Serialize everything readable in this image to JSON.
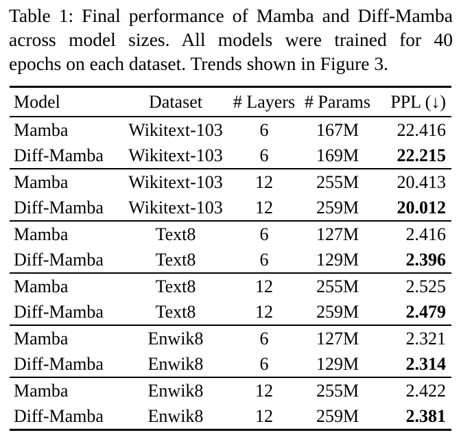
{
  "caption": {
    "full": "Table 1: Final performance of Mamba and Diff-Mamba across model sizes. All models were trained for 40 epochs on each dataset. Trends shown in Figure 3.",
    "lines": [
      "Table 1: Final performance of Mamba and Diff-Mamba",
      "across model sizes.  All models were trained for 40",
      "epochs on each dataset. Trends shown in Figure 3."
    ]
  },
  "table": {
    "headers": [
      "Model",
      "Dataset",
      "# Layers",
      "# Params",
      "PPL (↓)"
    ],
    "groups": [
      {
        "rows": [
          {
            "model": "Mamba",
            "dataset": "Wikitext-103",
            "layers": "6",
            "params": "167M",
            "ppl": "22.416",
            "ppl_bold": false
          },
          {
            "model": "Diff-Mamba",
            "dataset": "Wikitext-103",
            "layers": "6",
            "params": "169M",
            "ppl": "22.215",
            "ppl_bold": true
          }
        ]
      },
      {
        "rows": [
          {
            "model": "Mamba",
            "dataset": "Wikitext-103",
            "layers": "12",
            "params": "255M",
            "ppl": "20.413",
            "ppl_bold": false
          },
          {
            "model": "Diff-Mamba",
            "dataset": "Wikitext-103",
            "layers": "12",
            "params": "259M",
            "ppl": "20.012",
            "ppl_bold": true
          }
        ]
      },
      {
        "rows": [
          {
            "model": "Mamba",
            "dataset": "Text8",
            "layers": "6",
            "params": "127M",
            "ppl": "2.416",
            "ppl_bold": false
          },
          {
            "model": "Diff-Mamba",
            "dataset": "Text8",
            "layers": "6",
            "params": "129M",
            "ppl": "2.396",
            "ppl_bold": true
          }
        ]
      },
      {
        "rows": [
          {
            "model": "Mamba",
            "dataset": "Text8",
            "layers": "12",
            "params": "255M",
            "ppl": "2.525",
            "ppl_bold": false
          },
          {
            "model": "Diff-Mamba",
            "dataset": "Text8",
            "layers": "12",
            "params": "259M",
            "ppl": "2.479",
            "ppl_bold": true
          }
        ]
      },
      {
        "rows": [
          {
            "model": "Mamba",
            "dataset": "Enwik8",
            "layers": "6",
            "params": "127M",
            "ppl": "2.321",
            "ppl_bold": false
          },
          {
            "model": "Diff-Mamba",
            "dataset": "Enwik8",
            "layers": "6",
            "params": "129M",
            "ppl": "2.314",
            "ppl_bold": true
          }
        ]
      },
      {
        "rows": [
          {
            "model": "Mamba",
            "dataset": "Enwik8",
            "layers": "12",
            "params": "255M",
            "ppl": "2.422",
            "ppl_bold": false
          },
          {
            "model": "Diff-Mamba",
            "dataset": "Enwik8",
            "layers": "12",
            "params": "259M",
            "ppl": "2.381",
            "ppl_bold": true
          }
        ]
      }
    ],
    "colors": {
      "text": "#000000",
      "background": "#ffffff",
      "rule": "#000000"
    }
  }
}
